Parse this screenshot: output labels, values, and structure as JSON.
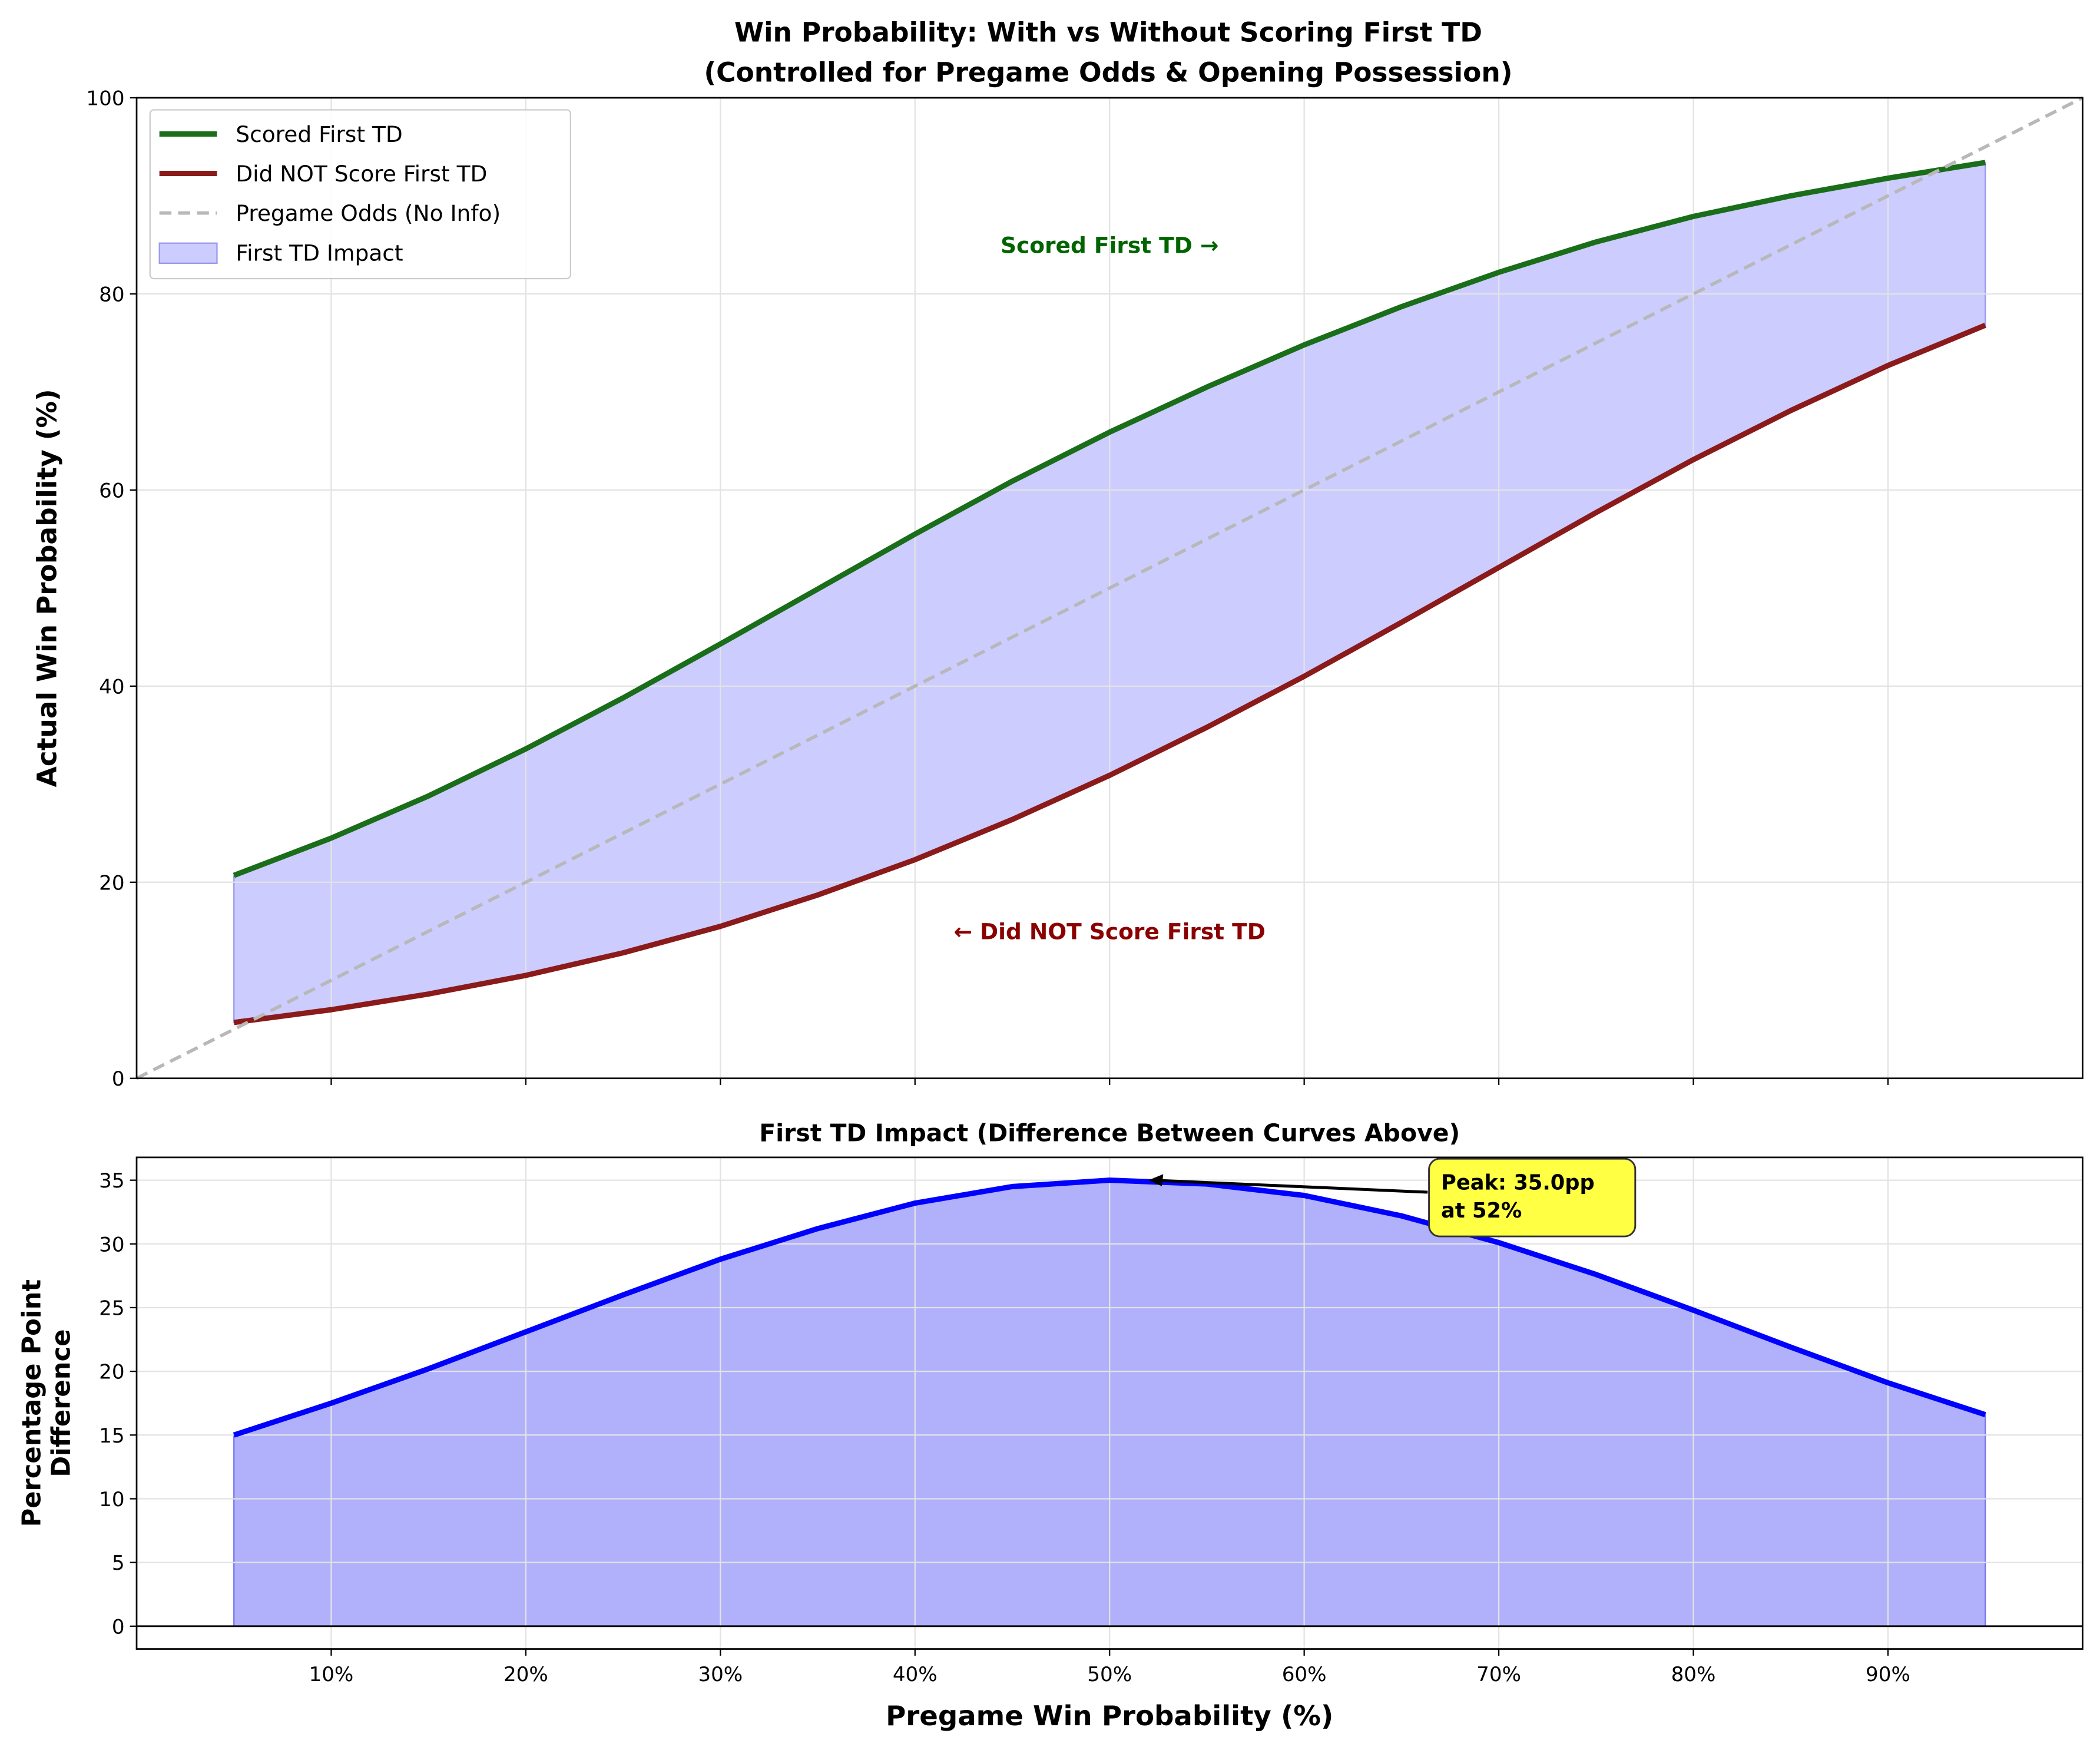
{
  "chart_data": [
    {
      "type": "line",
      "title": "Win Probability: With vs Without Scoring First TD",
      "subtitle": "(Controlled for Pregame Odds & Opening Possession)",
      "ylabel": "Actual Win Probability (%)",
      "x": [
        5,
        10,
        15,
        20,
        25,
        30,
        35,
        40,
        45,
        50,
        55,
        60,
        65,
        70,
        75,
        80,
        85,
        90,
        95
      ],
      "series": [
        {
          "name": "Scored First TD",
          "color": "#1a6e1a",
          "values": [
            20.7,
            24.5,
            28.8,
            33.6,
            38.8,
            44.3,
            49.9,
            55.5,
            60.9,
            65.9,
            70.5,
            74.8,
            78.7,
            82.2,
            85.3,
            87.9,
            90.0,
            91.8,
            93.4
          ]
        },
        {
          "name": "Did NOT Score First TD",
          "color": "#8b1a1a",
          "values": [
            5.7,
            7.0,
            8.6,
            10.5,
            12.8,
            15.5,
            18.7,
            22.3,
            26.4,
            30.9,
            35.8,
            41.0,
            46.5,
            52.1,
            57.7,
            63.1,
            68.1,
            72.7,
            76.8
          ]
        },
        {
          "name": "Pregame Odds (No Info)",
          "color": "#b8b8b8",
          "dashed": true,
          "x": [
            0,
            100
          ],
          "values": [
            0,
            100
          ]
        }
      ],
      "fill": {
        "name": "First TD Impact",
        "color": "#ccccff",
        "between": [
          0,
          1
        ]
      },
      "annotations": [
        {
          "text": "Scored First TD →",
          "color": "#006400"
        },
        {
          "text": "← Did NOT Score First TD",
          "color": "#8b0000"
        }
      ],
      "xlim": [
        0,
        100
      ],
      "ylim": [
        0,
        100
      ],
      "yticks": [
        0,
        20,
        40,
        60,
        80,
        100
      ],
      "grid": true,
      "legend": "upper left"
    },
    {
      "type": "area",
      "title": "First TD Impact (Difference Between Curves Above)",
      "ylabel": [
        "Percentage Point",
        "Difference"
      ],
      "xlabel": "Pregame Win Probability (%)",
      "x": [
        5,
        10,
        15,
        20,
        25,
        30,
        35,
        40,
        45,
        50,
        55,
        60,
        65,
        70,
        75,
        80,
        85,
        90,
        95
      ],
      "values": [
        15.0,
        17.5,
        20.2,
        23.1,
        26.0,
        28.8,
        31.2,
        33.2,
        34.5,
        35.0,
        34.7,
        33.8,
        32.2,
        30.1,
        27.6,
        24.8,
        21.9,
        19.1,
        16.6
      ],
      "color": "#0000ff",
      "fill_color": "#b0b0fb",
      "peak": {
        "x": 52,
        "y": 35.0,
        "label": [
          "Peak: 35.0pp",
          "at 52%"
        ]
      },
      "xlim": [
        0,
        100
      ],
      "ylim": [
        -1.79,
        36.79
      ],
      "xticks": [
        {
          "value": 10,
          "label": "10%"
        },
        {
          "value": 20,
          "label": "20%"
        },
        {
          "value": 30,
          "label": "30%"
        },
        {
          "value": 40,
          "label": "40%"
        },
        {
          "value": 50,
          "label": "50%"
        },
        {
          "value": 60,
          "label": "60%"
        },
        {
          "value": 70,
          "label": "70%"
        },
        {
          "value": 80,
          "label": "80%"
        },
        {
          "value": 90,
          "label": "90%"
        }
      ],
      "yticks": [
        0,
        5,
        10,
        15,
        20,
        25,
        30,
        35
      ],
      "grid": true
    }
  ]
}
